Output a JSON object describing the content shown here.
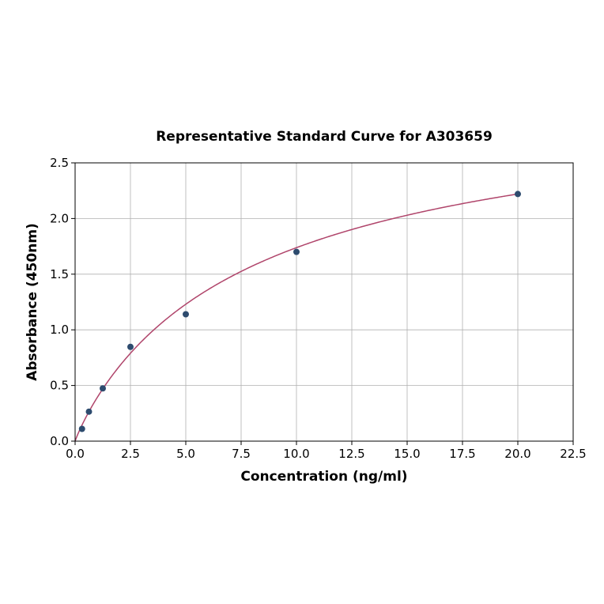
{
  "chart_data": {
    "type": "scatter",
    "title": "Representative Standard Curve for A303659",
    "xlabel": "Concentration (ng/ml)",
    "ylabel": "Absorbance (450nm)",
    "xlim": [
      0,
      22.5
    ],
    "ylim": [
      0,
      2.5
    ],
    "xticks": [
      "0.0",
      "2.5",
      "5.0",
      "7.5",
      "10.0",
      "12.5",
      "15.0",
      "17.5",
      "20.0",
      "22.5"
    ],
    "yticks": [
      "0.0",
      "0.5",
      "1.0",
      "1.5",
      "2.0",
      "2.5"
    ],
    "grid": true,
    "points": [
      {
        "x": 0.3125,
        "y": 0.11
      },
      {
        "x": 0.625,
        "y": 0.265
      },
      {
        "x": 1.25,
        "y": 0.474
      },
      {
        "x": 2.5,
        "y": 0.847
      },
      {
        "x": 5,
        "y": 1.14
      },
      {
        "x": 10,
        "y": 1.7
      },
      {
        "x": 20,
        "y": 2.22
      }
    ],
    "fit_curve": true,
    "colors": {
      "points": "#2d4b6e",
      "curve": "#b0456b",
      "grid": "#b0b0b0"
    }
  }
}
